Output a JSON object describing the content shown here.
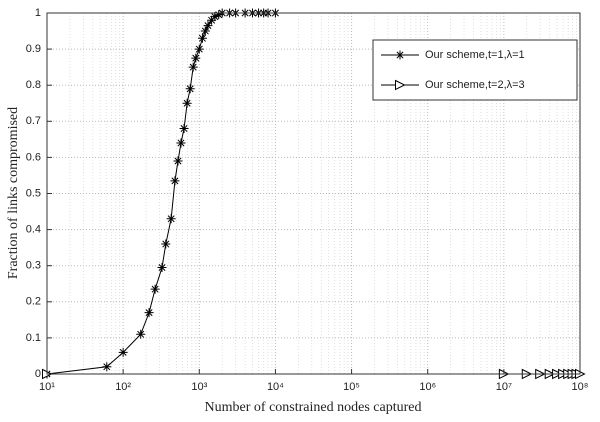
{
  "chart_data": {
    "type": "line",
    "xlabel": "Number of constrained nodes captured",
    "ylabel": "Fraction of links compromised",
    "xscale": "log",
    "xlim": [
      10,
      100000000
    ],
    "ylim": [
      0,
      1
    ],
    "xticks": [
      {
        "value": 10,
        "label": "10¹"
      },
      {
        "value": 100,
        "label": "10²"
      },
      {
        "value": 1000,
        "label": "10³"
      },
      {
        "value": 10000,
        "label": "10⁴"
      },
      {
        "value": 100000,
        "label": "10⁵"
      },
      {
        "value": 1000000,
        "label": "10⁶"
      },
      {
        "value": 10000000,
        "label": "10⁷"
      },
      {
        "value": 100000000,
        "label": "10⁸"
      }
    ],
    "yticks": [
      0,
      0.1,
      0.2,
      0.3,
      0.4,
      0.5,
      0.6,
      0.7,
      0.8,
      0.9,
      1
    ],
    "grid": true,
    "minor_grid": true,
    "legend": "northeast",
    "series": [
      {
        "name": "Our scheme,t=1,λ=1",
        "color": "#000000",
        "marker": "asterisk",
        "x": [
          10,
          61,
          100,
          170,
          219,
          263,
          324,
          363,
          427,
          479,
          525,
          575,
          631,
          692,
          759,
          832,
          900,
          1000,
          1100,
          1200,
          1300,
          1450,
          1600,
          1800,
          2000,
          2500,
          3000,
          4000,
          5000,
          6000,
          7000,
          8000,
          10000
        ],
        "values": [
          0,
          0.02,
          0.06,
          0.11,
          0.17,
          0.235,
          0.295,
          0.36,
          0.43,
          0.535,
          0.59,
          0.64,
          0.68,
          0.75,
          0.79,
          0.85,
          0.875,
          0.9,
          0.93,
          0.95,
          0.965,
          0.98,
          0.99,
          0.995,
          1,
          1,
          1,
          1,
          1,
          1,
          1,
          1,
          1
        ]
      },
      {
        "name": "Our scheme,t=2,λ=3",
        "color": "#000000",
        "marker": "triangle-right",
        "x": [
          10,
          10000000,
          20000000,
          30000000,
          40000000,
          50000000,
          60000000,
          70000000,
          80000000,
          90000000,
          100000000
        ],
        "values": [
          0,
          0,
          0,
          0,
          0,
          0,
          0,
          0,
          0,
          0,
          0
        ]
      }
    ]
  }
}
